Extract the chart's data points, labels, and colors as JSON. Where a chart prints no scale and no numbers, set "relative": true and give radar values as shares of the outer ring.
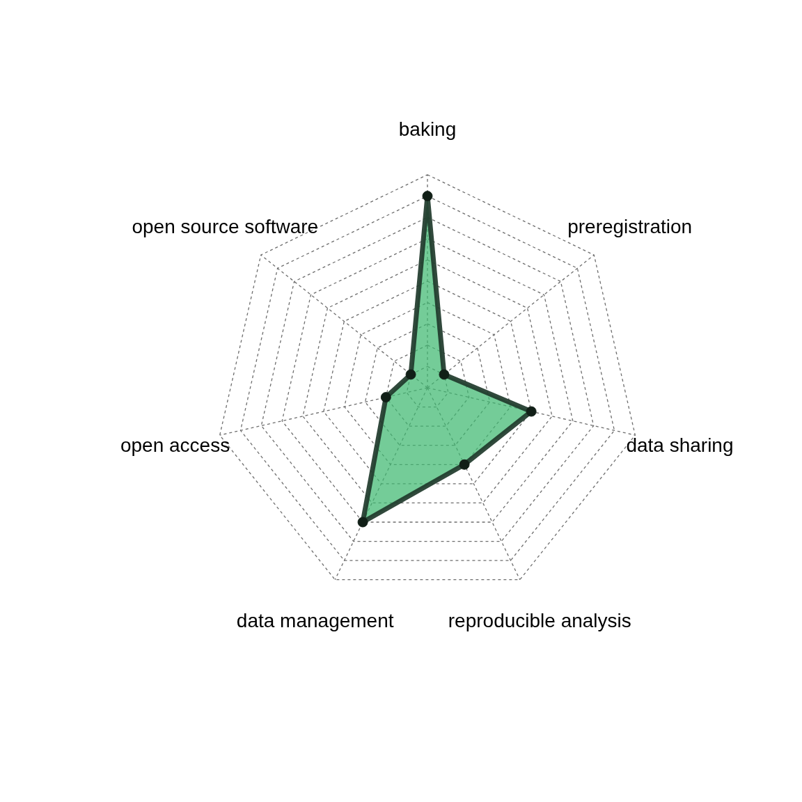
{
  "chart_data": {
    "type": "radar",
    "categories": [
      "baking",
      "preregistration",
      "data sharing",
      "reproducible analysis",
      "data management",
      "open access",
      "open source software"
    ],
    "series": [
      {
        "color": "#74cc98",
        "values": [
          0.9,
          0.1,
          0.5,
          0.4,
          0.7,
          0.2,
          0.1
        ]
      }
    ],
    "relative": true,
    "grid": true,
    "marker": "circle"
  }
}
